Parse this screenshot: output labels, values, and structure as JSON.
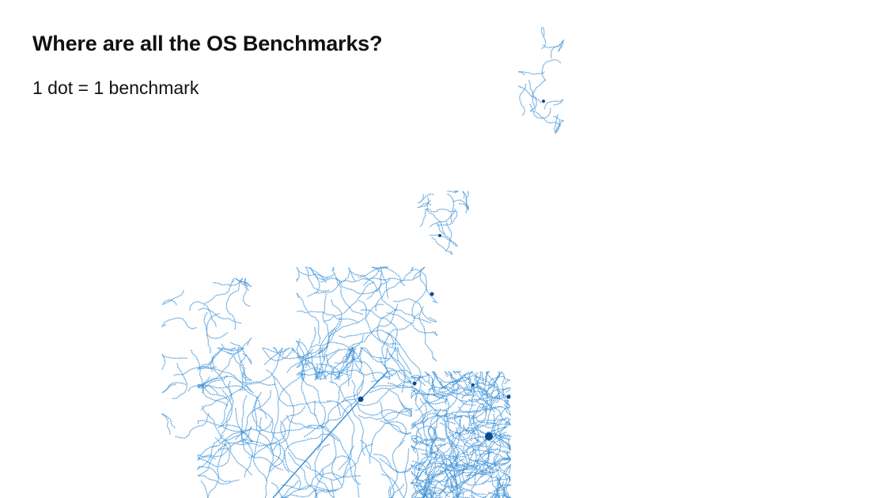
{
  "title": "Where are all the OS Benchmarks?",
  "subtitle": "1 dot = 1 benchmark",
  "colors": {
    "dot": "#3a8fd6",
    "dense": "#0b4a8f",
    "background": "#ffffff"
  }
}
